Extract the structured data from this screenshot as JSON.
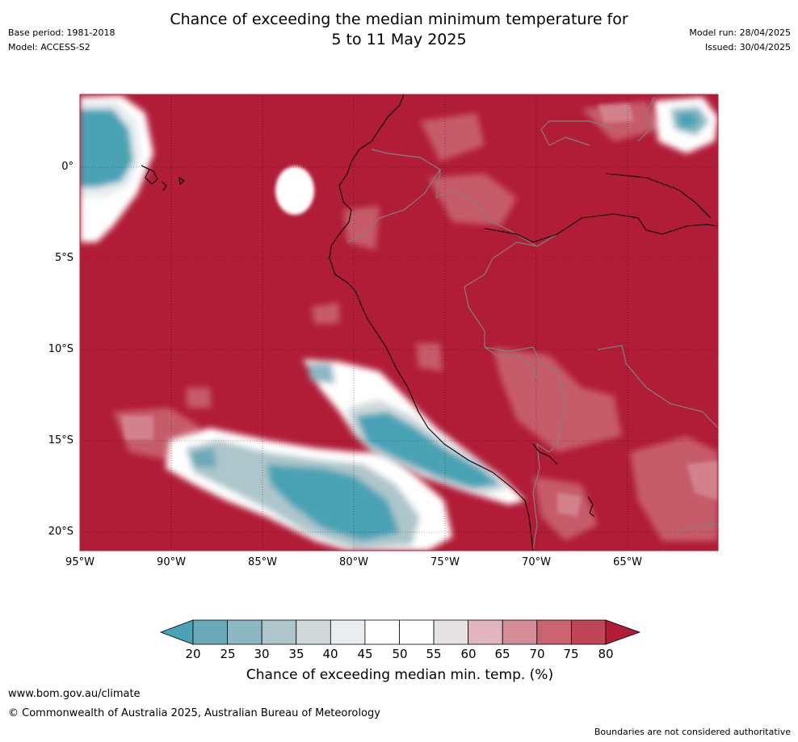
{
  "title_line1": "Chance of exceeding the median minimum temperature for",
  "title_line2": "5 to 11 May 2025",
  "meta": {
    "base_period": "Base period: 1981-2018",
    "model": "Model: ACCESS-S2",
    "model_run": "Model run: 28/04/2025",
    "issued": "Issued: 30/04/2025"
  },
  "map": {
    "lat_labels": [
      "0°",
      "5°S",
      "10°S",
      "15°S",
      "20°S"
    ],
    "lon_labels": [
      "95°W",
      "90°W",
      "85°W",
      "80°W",
      "75°W",
      "70°W",
      "65°W"
    ],
    "base_color": "#b11c37"
  },
  "legend": {
    "title": "Chance of exceeding median min. temp. (%)",
    "ticks": [
      "20",
      "25",
      "30",
      "35",
      "40",
      "45",
      "50",
      "55",
      "60",
      "65",
      "70",
      "75",
      "80"
    ],
    "colors": [
      "#4aa3b5",
      "#6aa9b8",
      "#8cb8c3",
      "#adc6cb",
      "#cfd9dc",
      "#e8eef0",
      "#ffffff",
      "#ffffff",
      "#e7e3e4",
      "#e0b5bd",
      "#d48c96",
      "#c9636f",
      "#bf4656",
      "#b11c37"
    ]
  },
  "footer": {
    "website": "www.bom.gov.au/climate",
    "copyright": "© Commonwealth of Australia 2025, Australian Bureau of Meteorology",
    "note": "Boundaries are not considered authoritative"
  }
}
